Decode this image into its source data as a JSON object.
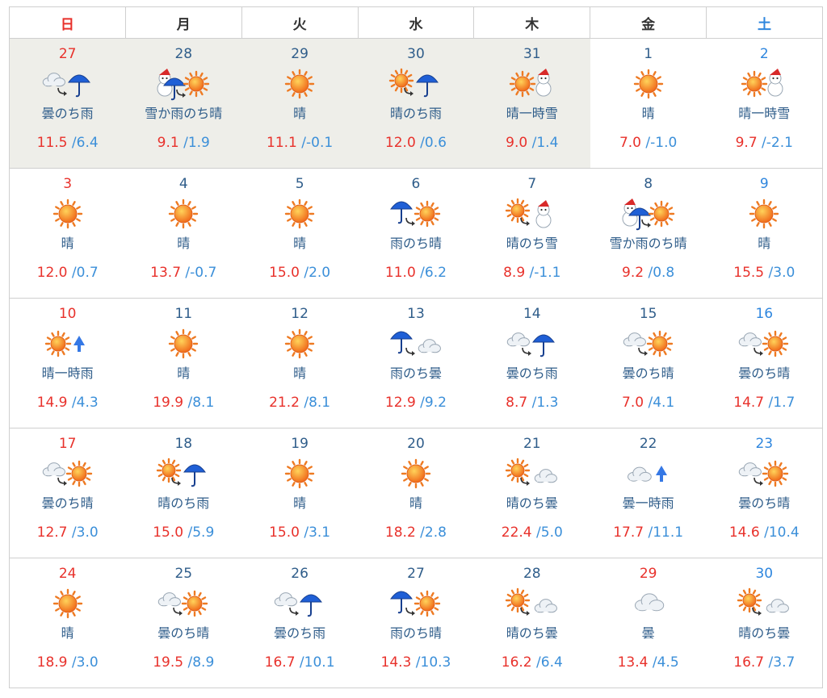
{
  "weekdays": [
    "日",
    "月",
    "火",
    "水",
    "木",
    "金",
    "土"
  ],
  "weeks": [
    [
      {
        "day": "27",
        "icon": "cloud-then-rain-icon",
        "weather": "曇のち雨",
        "high": "11.5",
        "low": "6.4",
        "prev_month": true
      },
      {
        "day": "28",
        "icon": "snow-or-rain-then-sun-icon",
        "weather": "雪か雨のち晴",
        "high": "9.1",
        "low": "1.9",
        "prev_month": true
      },
      {
        "day": "29",
        "icon": "sun-icon",
        "weather": "晴",
        "high": "11.1",
        "low": "-0.1",
        "prev_month": true
      },
      {
        "day": "30",
        "icon": "sun-then-rain-icon",
        "weather": "晴のち雨",
        "high": "12.0",
        "low": "0.6",
        "prev_month": true
      },
      {
        "day": "31",
        "icon": "sun-occasional-snow-icon",
        "weather": "晴一時雪",
        "high": "9.0",
        "low": "1.4",
        "prev_month": true
      },
      {
        "day": "1",
        "icon": "sun-icon",
        "weather": "晴",
        "high": "7.0",
        "low": "-1.0"
      },
      {
        "day": "2",
        "icon": "sun-occasional-snow-icon",
        "weather": "晴一時雪",
        "high": "9.7",
        "low": "-2.1"
      }
    ],
    [
      {
        "day": "3",
        "icon": "sun-icon",
        "weather": "晴",
        "high": "12.0",
        "low": "0.7"
      },
      {
        "day": "4",
        "icon": "sun-icon",
        "weather": "晴",
        "high": "13.7",
        "low": "-0.7"
      },
      {
        "day": "5",
        "icon": "sun-icon",
        "weather": "晴",
        "high": "15.0",
        "low": "2.0"
      },
      {
        "day": "6",
        "icon": "rain-then-sun-icon",
        "weather": "雨のち晴",
        "high": "11.0",
        "low": "6.2"
      },
      {
        "day": "7",
        "icon": "sun-then-snow-icon",
        "weather": "晴のち雪",
        "high": "8.9",
        "low": "-1.1"
      },
      {
        "day": "8",
        "icon": "snow-or-rain-then-sun-icon",
        "weather": "雪か雨のち晴",
        "high": "9.2",
        "low": "0.8"
      },
      {
        "day": "9",
        "icon": "sun-icon",
        "weather": "晴",
        "high": "15.5",
        "low": "3.0"
      }
    ],
    [
      {
        "day": "10",
        "icon": "sun-occasional-rain-icon",
        "weather": "晴一時雨",
        "high": "14.9",
        "low": "4.3"
      },
      {
        "day": "11",
        "icon": "sun-icon",
        "weather": "晴",
        "high": "19.9",
        "low": "8.1"
      },
      {
        "day": "12",
        "icon": "sun-icon",
        "weather": "晴",
        "high": "21.2",
        "low": "8.1"
      },
      {
        "day": "13",
        "icon": "rain-then-cloud-icon",
        "weather": "雨のち曇",
        "high": "12.9",
        "low": "9.2"
      },
      {
        "day": "14",
        "icon": "cloud-then-rain-icon",
        "weather": "曇のち雨",
        "high": "8.7",
        "low": "1.3"
      },
      {
        "day": "15",
        "icon": "cloud-then-sun-icon",
        "weather": "曇のち晴",
        "high": "7.0",
        "low": "4.1"
      },
      {
        "day": "16",
        "icon": "cloud-then-sun-icon",
        "weather": "曇のち晴",
        "high": "14.7",
        "low": "1.7"
      }
    ],
    [
      {
        "day": "17",
        "icon": "cloud-then-sun-icon",
        "weather": "曇のち晴",
        "high": "12.7",
        "low": "3.0"
      },
      {
        "day": "18",
        "icon": "sun-then-rain-icon",
        "weather": "晴のち雨",
        "high": "15.0",
        "low": "5.9"
      },
      {
        "day": "19",
        "icon": "sun-icon",
        "weather": "晴",
        "high": "15.0",
        "low": "3.1"
      },
      {
        "day": "20",
        "icon": "sun-icon",
        "weather": "晴",
        "high": "18.2",
        "low": "2.8"
      },
      {
        "day": "21",
        "icon": "sun-then-cloud-icon",
        "weather": "晴のち曇",
        "high": "22.4",
        "low": "5.0"
      },
      {
        "day": "22",
        "icon": "cloud-occasional-rain-icon",
        "weather": "曇一時雨",
        "high": "17.7",
        "low": "11.1"
      },
      {
        "day": "23",
        "icon": "cloud-then-sun-icon",
        "weather": "曇のち晴",
        "high": "14.6",
        "low": "10.4"
      }
    ],
    [
      {
        "day": "24",
        "icon": "sun-icon",
        "weather": "晴",
        "high": "18.9",
        "low": "3.0"
      },
      {
        "day": "25",
        "icon": "cloud-then-sun-icon",
        "weather": "曇のち晴",
        "high": "19.5",
        "low": "8.9"
      },
      {
        "day": "26",
        "icon": "cloud-then-rain-icon",
        "weather": "曇のち雨",
        "high": "16.7",
        "low": "10.1"
      },
      {
        "day": "27",
        "icon": "rain-then-sun-icon",
        "weather": "雨のち晴",
        "high": "14.3",
        "low": "10.3"
      },
      {
        "day": "28",
        "icon": "sun-then-cloud-icon",
        "weather": "晴のち曇",
        "high": "16.2",
        "low": "6.4"
      },
      {
        "day": "29",
        "icon": "cloud-icon",
        "weather": "曇",
        "high": "13.4",
        "low": "4.5",
        "holiday": true
      },
      {
        "day": "30",
        "icon": "sun-then-cloud-icon",
        "weather": "晴のち曇",
        "high": "16.7",
        "low": "3.7"
      }
    ]
  ],
  "colors": {
    "sunday": "#e8312b",
    "saturday": "#2e86de",
    "weekday_number": "#2f5d8a",
    "high_temp": "#e8312b",
    "low_temp": "#3b8fd9",
    "prev_month_bg": "#eeeee9"
  }
}
